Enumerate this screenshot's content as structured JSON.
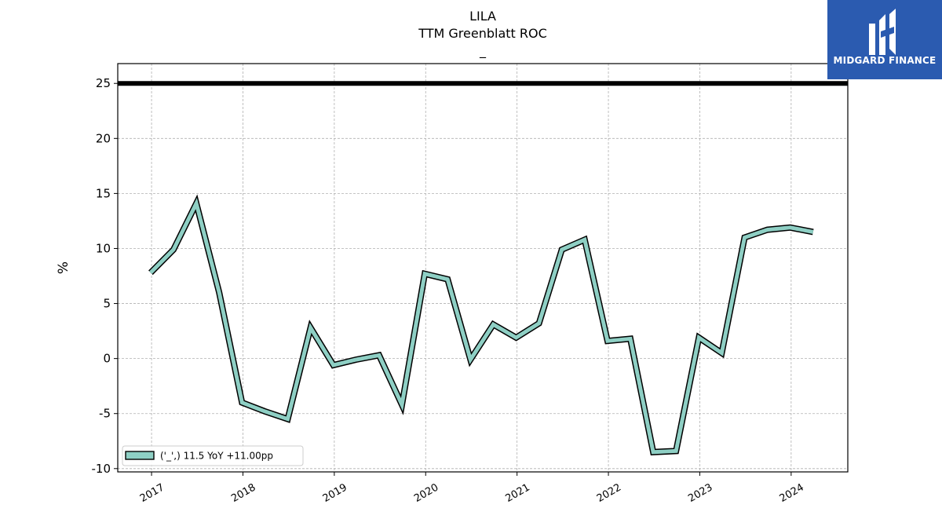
{
  "chart_data": {
    "type": "line",
    "title": "LILA",
    "subtitle": "TTM Greenblatt ROC",
    "subtitle2": "_",
    "ylabel": "%",
    "xlabel": "",
    "ylim": [
      -10.3,
      26.8
    ],
    "xlim": [
      2016.63,
      2024.62
    ],
    "yticks": [
      -10,
      -5,
      0,
      5,
      10,
      15,
      20,
      25
    ],
    "xticks": [
      2017,
      2018,
      2019,
      2020,
      2021,
      2022,
      2023,
      2024
    ],
    "reference_line": {
      "y": 25,
      "color": "#000000"
    },
    "grid": true,
    "legend": {
      "position": "lower-left",
      "label": "('_',) 11.5 YoY +11.00pp"
    },
    "series": [
      {
        "color": "#8ecfc4",
        "x": [
          2016.99,
          2017.24,
          2017.49,
          2017.74,
          2017.99,
          2018.24,
          2018.49,
          2018.74,
          2018.99,
          2019.24,
          2019.49,
          2019.74,
          2019.99,
          2020.24,
          2020.49,
          2020.74,
          2020.99,
          2021.24,
          2021.49,
          2021.74,
          2021.99,
          2022.24,
          2022.49,
          2022.74,
          2022.99,
          2023.24,
          2023.49,
          2023.74,
          2023.99,
          2024.24
        ],
        "y": [
          7.8,
          9.9,
          14.1,
          6.0,
          -4.0,
          -4.8,
          -5.5,
          2.8,
          -0.6,
          -0.1,
          0.3,
          -4.2,
          7.7,
          7.2,
          -0.1,
          3.1,
          1.9,
          3.2,
          9.9,
          10.8,
          1.6,
          1.8,
          -8.5,
          -8.4,
          1.9,
          0.5,
          11.0,
          11.7,
          11.9,
          11.5
        ]
      }
    ]
  },
  "logo": {
    "text": "MIDGARD FINANCE",
    "color": "#2b5bb0"
  }
}
